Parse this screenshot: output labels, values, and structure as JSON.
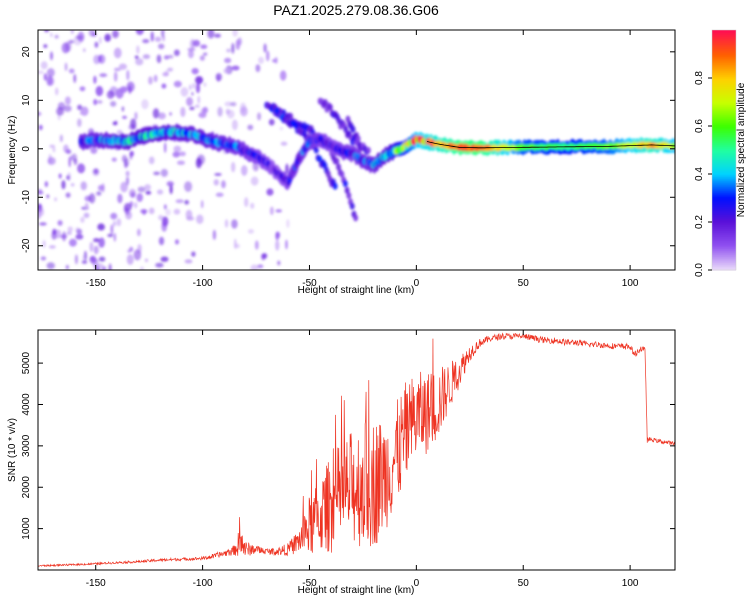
{
  "title": "PAZ1.2025.279.08.36.G06",
  "chart_data": [
    {
      "type": "heatmap",
      "name": "spectrogram",
      "xlabel": "Height of straight line (km)",
      "ylabel": "Frequency (Hz)",
      "xlim": [
        -177,
        121
      ],
      "ylim": [
        -25,
        24.5
      ],
      "xticks": [
        -150,
        -100,
        -50,
        0,
        50,
        100
      ],
      "yticks": [
        -20,
        -10,
        0,
        10,
        20
      ],
      "colorbar": {
        "label": "Normalized spectral amplitude",
        "range": [
          0,
          1
        ],
        "ticks": [
          0.0,
          0.2,
          0.4,
          0.6,
          0.8
        ],
        "colormap": [
          "#e8d8fa",
          "#8f50f0",
          "#5a10d8",
          "#0010ff",
          "#00d2ff",
          "#20ffa0",
          "#3cff00",
          "#c8ff00",
          "#ffd000",
          "#ff6000",
          "#ff1050"
        ]
      },
      "ridge": {
        "description": "dominant frequency track",
        "x": [
          -157,
          -145,
          -135,
          -125,
          -115,
          -105,
          -95,
          -85,
          -75,
          -70,
          -65,
          -60,
          -55,
          -50,
          -45,
          -40,
          -35,
          -30,
          -25,
          -20,
          -15,
          -10,
          -5,
          0,
          10,
          20,
          30,
          50,
          70,
          90,
          110,
          121
        ],
        "freq": [
          1.5,
          1.8,
          1.5,
          3.0,
          3.5,
          3.0,
          1.5,
          0.5,
          -1.5,
          -3.0,
          -5.0,
          -7.0,
          -2.0,
          1.5,
          2.0,
          0.5,
          -0.5,
          -1.0,
          -2.5,
          -3.5,
          -1.5,
          -0.5,
          0.5,
          2.0,
          1.0,
          0.3,
          0.2,
          0.3,
          0.4,
          0.5,
          0.8,
          0.6
        ],
        "amplitude": [
          0.28,
          0.3,
          0.34,
          0.36,
          0.34,
          0.32,
          0.3,
          0.26,
          0.2,
          0.18,
          0.15,
          0.2,
          0.25,
          0.26,
          0.22,
          0.18,
          0.22,
          0.24,
          0.26,
          0.3,
          0.34,
          0.45,
          0.55,
          0.72,
          0.82,
          0.93,
          0.95,
          0.6,
          0.55,
          0.62,
          0.85,
          0.7
        ]
      },
      "branches": [
        {
          "x": [
            -70,
            -60,
            -50,
            -40,
            -34,
            -28
          ],
          "freq": [
            9,
            6.5,
            4,
            0,
            -6,
            -15
          ],
          "amplitude": 0.22
        },
        {
          "x": [
            -66,
            -58,
            -50,
            -44,
            -38
          ],
          "freq": [
            8,
            5,
            2,
            -3,
            -8
          ],
          "amplitude": 0.24
        },
        {
          "x": [
            -45,
            -40,
            -35,
            -30,
            -26
          ],
          "freq": [
            10,
            8,
            5,
            2,
            0
          ],
          "amplitude": 0.2
        },
        {
          "x": [
            -32,
            -29,
            -26,
            -22
          ],
          "freq": [
            6,
            3,
            1,
            -1
          ],
          "amplitude": 0.18
        }
      ],
      "noise_region_x": [
        -177,
        -60
      ]
    },
    {
      "type": "line",
      "name": "snr",
      "xlabel": "Height of straight line (km)",
      "ylabel": "SNR (10 * v/v)",
      "xlim": [
        -177,
        121
      ],
      "ylim": [
        0,
        5800
      ],
      "xticks": [
        -150,
        -100,
        -50,
        0,
        50,
        100
      ],
      "yticks": [
        1000,
        2000,
        3000,
        4000,
        5000
      ],
      "color": "#ee3322",
      "series": [
        {
          "name": "SNR",
          "x": [
            -177,
            -160,
            -150,
            -140,
            -130,
            -120,
            -110,
            -100,
            -95,
            -90,
            -85,
            -82,
            -80,
            -75,
            -70,
            -65,
            -60,
            -55,
            -50,
            -45,
            -40,
            -35,
            -30,
            -25,
            -20,
            -15,
            -10,
            -5,
            0,
            5,
            10,
            15,
            20,
            25,
            30,
            35,
            40,
            45,
            50,
            55,
            60,
            65,
            70,
            75,
            80,
            85,
            90,
            95,
            100,
            102,
            105,
            107,
            108,
            110,
            115,
            121
          ],
          "mean": [
            100,
            130,
            150,
            180,
            200,
            240,
            260,
            280,
            330,
            400,
            480,
            700,
            500,
            500,
            450,
            450,
            500,
            700,
            1050,
            1300,
            1600,
            1800,
            2000,
            2100,
            2100,
            2300,
            2700,
            3300,
            3700,
            3800,
            4000,
            4400,
            4800,
            5250,
            5500,
            5600,
            5650,
            5650,
            5650,
            5600,
            5550,
            5550,
            5500,
            5500,
            5450,
            5450,
            5420,
            5400,
            5400,
            5200,
            5350,
            5300,
            3150,
            3150,
            3100,
            3050
          ],
          "spread": [
            40,
            40,
            50,
            50,
            60,
            70,
            70,
            80,
            120,
            150,
            250,
            900,
            400,
            200,
            150,
            200,
            300,
            600,
            1500,
            1800,
            2400,
            2600,
            2800,
            3200,
            3200,
            2800,
            2600,
            2500,
            2200,
            2000,
            1800,
            1200,
            800,
            400,
            200,
            150,
            150,
            150,
            150,
            150,
            150,
            150,
            150,
            150,
            150,
            150,
            150,
            150,
            150,
            150,
            150,
            150,
            150,
            100,
            100,
            100
          ]
        }
      ]
    }
  ]
}
